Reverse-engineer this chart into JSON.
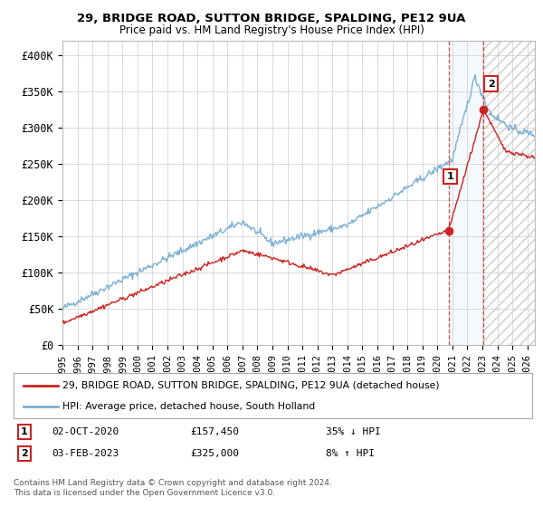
{
  "title": "29, BRIDGE ROAD, SUTTON BRIDGE, SPALDING, PE12 9UA",
  "subtitle": "Price paid vs. HM Land Registry's House Price Index (HPI)",
  "ylim": [
    0,
    420000
  ],
  "yticks": [
    0,
    50000,
    100000,
    150000,
    200000,
    250000,
    300000,
    350000,
    400000
  ],
  "ytick_labels": [
    "£0",
    "£50K",
    "£100K",
    "£150K",
    "£200K",
    "£250K",
    "£300K",
    "£350K",
    "£400K"
  ],
  "xlim_start": 1995.0,
  "xlim_end": 2026.5,
  "hpi_color": "#7bafd4",
  "price_color": "#cc2222",
  "background_color": "#ffffff",
  "grid_color": "#cccccc",
  "shade_color": "#dce8f5",
  "point1_x": 2020.75,
  "point1_y": 157450,
  "point1_label": "1",
  "point1_date": "02-OCT-2020",
  "point1_price": "£157,450",
  "point1_hpi": "35% ↓ HPI",
  "point2_x": 2023.08,
  "point2_y": 325000,
  "point2_label": "2",
  "point2_date": "03-FEB-2023",
  "point2_price": "£325,000",
  "point2_hpi": "8% ↑ HPI",
  "legend_line1": "29, BRIDGE ROAD, SUTTON BRIDGE, SPALDING, PE12 9UA (detached house)",
  "legend_line2": "HPI: Average price, detached house, South Holland",
  "footnote": "Contains HM Land Registry data © Crown copyright and database right 2024.\nThis data is licensed under the Open Government Licence v3.0."
}
